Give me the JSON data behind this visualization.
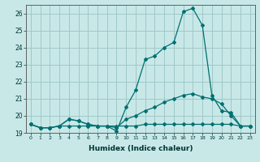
{
  "xlabel": "Humidex (Indice chaleur)",
  "ylabel": "",
  "background_color": "#c8e8e8",
  "grid_color": "#a0c8c8",
  "line_color": "#007070",
  "x": [
    0,
    1,
    2,
    3,
    4,
    5,
    6,
    7,
    8,
    9,
    10,
    11,
    12,
    13,
    14,
    15,
    16,
    17,
    18,
    19,
    20,
    21,
    22,
    23
  ],
  "y_line1": [
    19.5,
    19.3,
    19.3,
    19.4,
    19.8,
    19.7,
    19.5,
    19.4,
    19.4,
    19.1,
    20.5,
    21.5,
    23.3,
    23.5,
    24.0,
    24.3,
    26.1,
    26.3,
    25.3,
    21.2,
    20.3,
    20.2,
    19.4,
    19.4
  ],
  "y_line2": [
    19.5,
    19.3,
    19.3,
    19.4,
    19.8,
    19.7,
    19.5,
    19.4,
    19.4,
    19.3,
    19.8,
    20.0,
    20.3,
    20.5,
    20.8,
    21.0,
    21.2,
    21.3,
    21.1,
    21.0,
    20.7,
    20.0,
    19.4,
    19.4
  ],
  "y_line3": [
    19.5,
    19.3,
    19.3,
    19.4,
    19.4,
    19.4,
    19.4,
    19.4,
    19.4,
    19.4,
    19.4,
    19.4,
    19.5,
    19.5,
    19.5,
    19.5,
    19.5,
    19.5,
    19.5,
    19.5,
    19.5,
    19.5,
    19.4,
    19.4
  ],
  "ylim": [
    19.0,
    26.5
  ],
  "xlim": [
    -0.5,
    23.5
  ]
}
